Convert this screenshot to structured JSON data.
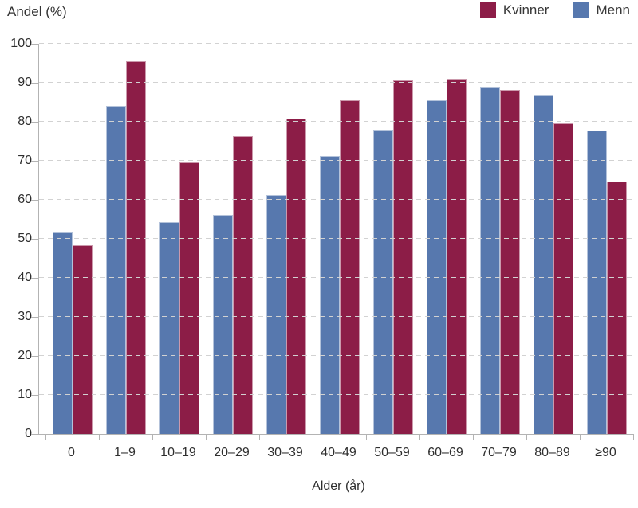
{
  "chart_data": {
    "type": "bar",
    "title": "",
    "ylabel": "Andel (%)",
    "xlabel": "Alder (år)",
    "categories": [
      "0",
      "1–9",
      "10–19",
      "20–29",
      "30–39",
      "40–49",
      "50–59",
      "60–69",
      "70–79",
      "80–89",
      "≥90"
    ],
    "series": [
      {
        "name": "Kvinner",
        "color": "#8C1D47",
        "values": [
          48.4,
          95.5,
          69.5,
          76.4,
          80.8,
          85.5,
          90.6,
          91.1,
          88.1,
          79.6,
          64.7
        ]
      },
      {
        "name": "Menn",
        "color": "#5778AE",
        "values": [
          51.8,
          84.0,
          54.3,
          56.2,
          61.2,
          71.3,
          78.0,
          85.5,
          88.9,
          87.0,
          77.7
        ]
      }
    ],
    "bar_draw_order": [
      "Menn",
      "Kvinner"
    ],
    "ylim": [
      0,
      100
    ],
    "yticks": [
      0,
      10,
      20,
      30,
      40,
      50,
      60,
      70,
      80,
      90,
      100
    ],
    "grid": true,
    "gridline_color": "#d2d2d2",
    "axis_color": "#b3b3b3",
    "legend_position": "top-right"
  }
}
